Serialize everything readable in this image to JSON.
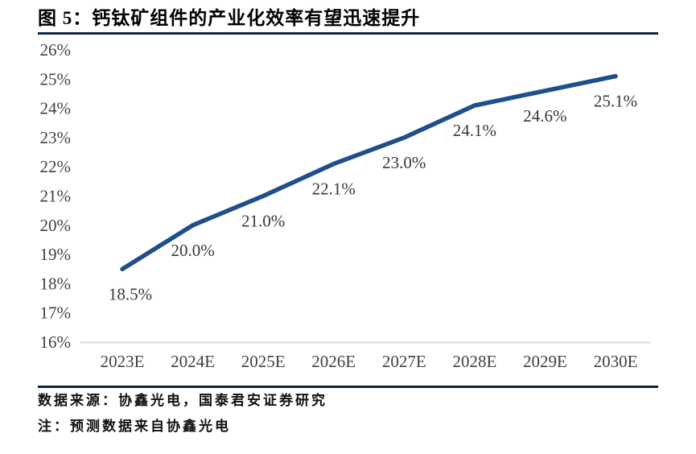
{
  "header": {
    "title": "图 5：钙钛矿组件的产业化效率有望迅速提升"
  },
  "footer": {
    "source": "数据来源：协鑫光电，国泰君安证券研究",
    "note": "注：预测数据来自协鑫光电"
  },
  "colors": {
    "line": "#1F4E8C",
    "rule": "#0C2449",
    "axis_line": "#D9D9D9",
    "tick_label": "#404040",
    "data_label": "#383838",
    "title_text": "#000000",
    "background": "#FFFFFF"
  },
  "chart_data": {
    "type": "line",
    "title": "图 5：钙钛矿组件的产业化效率有望迅速提升",
    "categories": [
      "2023E",
      "2024E",
      "2025E",
      "2026E",
      "2027E",
      "2028E",
      "2029E",
      "2030E"
    ],
    "values": [
      18.5,
      20.0,
      21.0,
      22.1,
      23.0,
      24.1,
      24.6,
      25.1
    ],
    "data_labels": [
      "18.5%",
      "20.0%",
      "21.0%",
      "22.1%",
      "23.0%",
      "24.1%",
      "24.6%",
      "25.1%"
    ],
    "ytick_labels": [
      "16%",
      "17%",
      "18%",
      "19%",
      "20%",
      "21%",
      "22%",
      "23%",
      "24%",
      "25%",
      "26%"
    ],
    "ylim": [
      16,
      26
    ],
    "ytick_step": 1,
    "xlabel": "",
    "ylabel": "",
    "grid": false,
    "legend": "none",
    "markers": false
  }
}
